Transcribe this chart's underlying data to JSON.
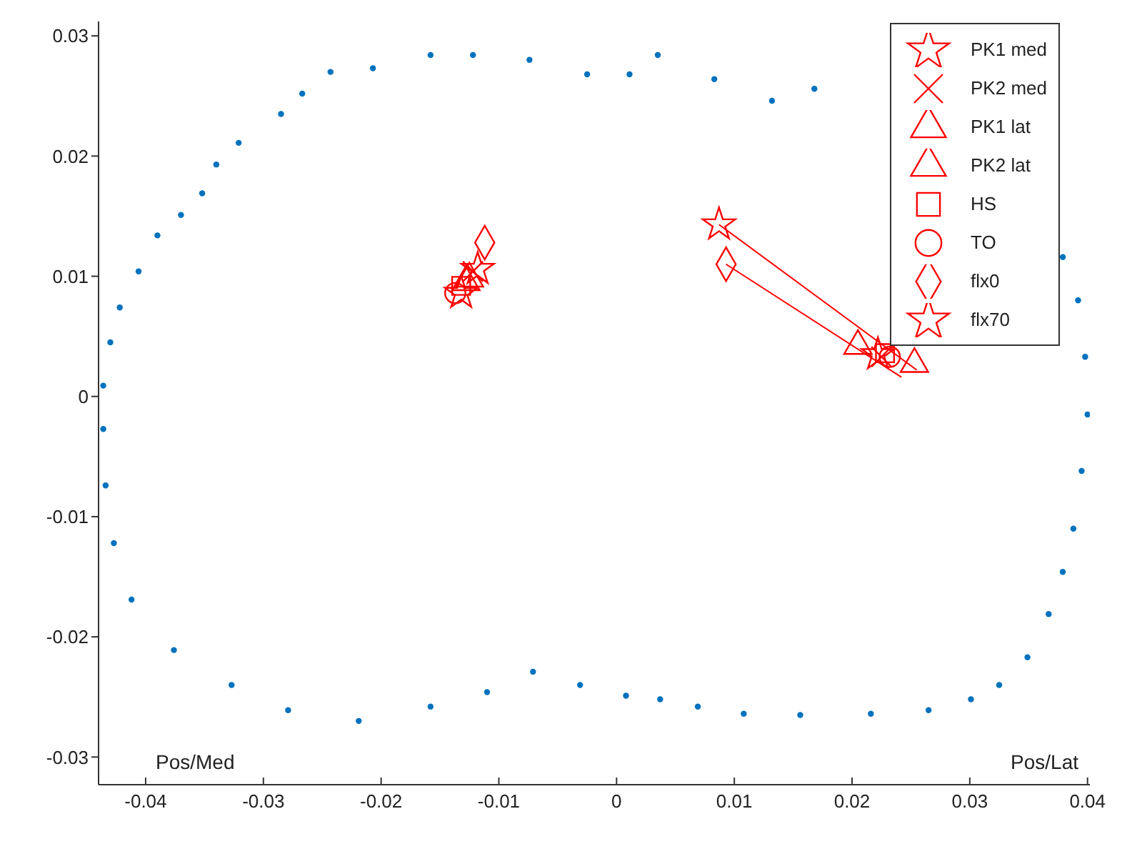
{
  "chart_data": {
    "type": "scatter",
    "xlim": [
      -0.044,
      0.0402
    ],
    "ylim": [
      -0.0323,
      0.0312
    ],
    "xticks": [
      -0.04,
      -0.03,
      -0.02,
      -0.01,
      0,
      0.01,
      0.02,
      0.03,
      0.04
    ],
    "yticks": [
      -0.03,
      -0.02,
      -0.01,
      0,
      0.01,
      0.02,
      0.03
    ],
    "grid": false,
    "legend": "top right",
    "annotations": [
      "Pos/Med",
      "Pos/Lat"
    ],
    "series": [
      {
        "marker": "circle",
        "color": "#0072bd",
        "x": [
          -0.0436,
          -0.043,
          -0.0422,
          -0.0406,
          -0.039,
          -0.037,
          -0.0352,
          -0.034,
          -0.0321,
          -0.0285,
          -0.0267,
          -0.0243,
          -0.0207,
          -0.0158,
          -0.0122,
          -0.0074,
          -0.0025,
          0.0011,
          0.0035,
          0.0083,
          0.0132,
          0.0168,
          0.0379,
          0.0392,
          0.0398,
          0.04,
          0.0395,
          0.0388,
          0.0379,
          0.0367,
          0.0349,
          0.0325,
          0.0301,
          0.0265,
          0.0216,
          0.0156,
          0.0108,
          0.0069,
          0.0037,
          0.0008,
          -0.0031,
          -0.0071,
          -0.011,
          -0.0158,
          -0.0219,
          -0.0279,
          -0.0327,
          -0.0376,
          -0.0412,
          -0.0427,
          -0.0434,
          -0.0436
        ],
        "values": [
          0.0009,
          0.0045,
          0.0074,
          0.0104,
          0.0134,
          0.0151,
          0.0169,
          0.0193,
          0.0211,
          0.0235,
          0.0252,
          0.027,
          0.0273,
          0.0284,
          0.0284,
          0.028,
          0.0268,
          0.0268,
          0.0284,
          0.0264,
          0.0246,
          0.0256,
          0.0116,
          0.008,
          0.0033,
          -0.0015,
          -0.0062,
          -0.011,
          -0.0146,
          -0.0181,
          -0.0217,
          -0.024,
          -0.0252,
          -0.0261,
          -0.0264,
          -0.0265,
          -0.0264,
          -0.0258,
          -0.0252,
          -0.0249,
          -0.024,
          -0.0229,
          -0.0246,
          -0.0258,
          -0.027,
          -0.0261,
          -0.024,
          -0.0211,
          -0.0169,
          -0.0122,
          -0.0074,
          -0.0027
        ]
      },
      {
        "type": "line",
        "marker": "none",
        "color": "#ff0000",
        "x": [
          0.0087,
          0.0255
        ],
        "values": [
          0.0143,
          0.0022
        ]
      },
      {
        "type": "line",
        "marker": "none",
        "color": "#ff0000",
        "x": [
          0.0093,
          0.0242
        ],
        "values": [
          0.011,
          0.0016
        ]
      },
      {
        "name": "PK1 med",
        "marker": "star",
        "color": "#ff0000",
        "x": [
          -0.0118,
          0.0222
        ],
        "values": [
          0.0106,
          0.0035
        ]
      },
      {
        "name": "PK2 med",
        "marker": "cross",
        "color": "#ff0000",
        "x": [
          -0.0122,
          0.0225
        ],
        "values": [
          0.0104,
          0.0033
        ]
      },
      {
        "name": "PK1 lat",
        "marker": "triangle",
        "color": "#ff0000",
        "x": [
          -0.0125,
          0.0253
        ],
        "values": [
          0.0098,
          0.0027
        ]
      },
      {
        "name": "PK2 lat",
        "marker": "triangle",
        "color": "#ff0000",
        "x": [
          -0.0128,
          0.0205
        ],
        "values": [
          0.0095,
          0.0042
        ]
      },
      {
        "name": "HS",
        "marker": "square",
        "color": "#ff0000",
        "x": [
          -0.0132,
          0.0228
        ],
        "values": [
          0.0092,
          0.0036
        ]
      },
      {
        "name": "TO",
        "marker": "circle",
        "color": "#ff0000",
        "x": [
          -0.0137,
          0.0232
        ],
        "values": [
          0.0086,
          0.0033
        ]
      },
      {
        "name": "flx0",
        "marker": "diamond",
        "color": "#ff0000",
        "x": [
          -0.0112,
          0.0093
        ],
        "values": [
          0.0128,
          0.011
        ]
      },
      {
        "name": "flx70",
        "marker": "star",
        "color": "#ff0000",
        "x": [
          -0.0132,
          0.0087
        ],
        "values": [
          0.0086,
          0.0143
        ]
      }
    ]
  }
}
